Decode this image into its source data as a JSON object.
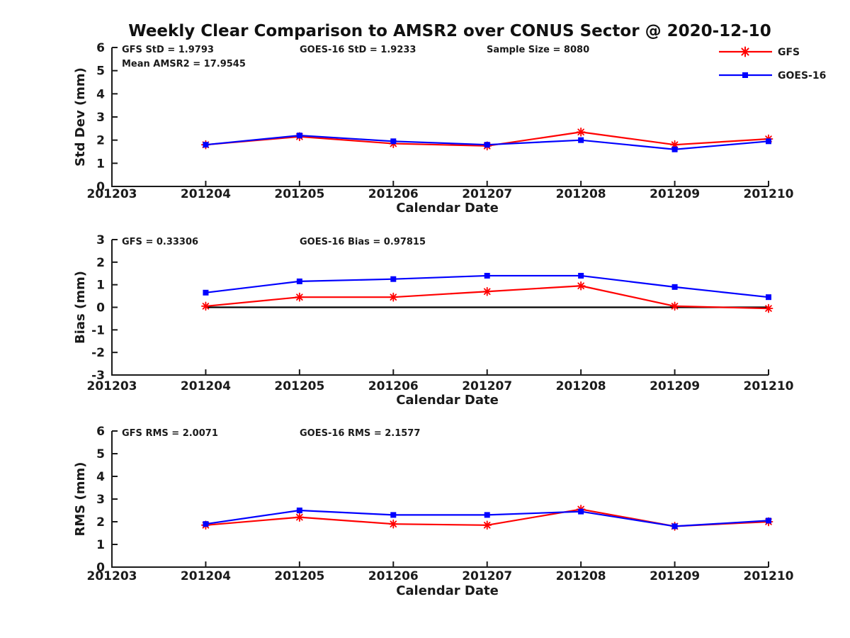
{
  "title": "Weekly Clear Comparison to AMSR2 over CONUS Sector @ 2020-12-10",
  "colors": {
    "gfs_red": "#ff0000",
    "goes_blue": "#0000ff",
    "axis_and_text": "#1a1a1a",
    "zero_line": "#000000",
    "background": "#ffffff"
  },
  "legend": {
    "position": "top-right",
    "items": [
      {
        "label": "GFS",
        "color": "#ff0000",
        "marker": "asterisk"
      },
      {
        "label": "GOES-16",
        "color": "#0000ff",
        "marker": "square"
      }
    ]
  },
  "chart_data": [
    {
      "id": "std_dev",
      "type": "line",
      "ylabel": "Std Dev (mm)",
      "xlabel": "Calendar Date",
      "ylim": [
        0,
        6
      ],
      "yticks": [
        0,
        1,
        2,
        3,
        4,
        5,
        6
      ],
      "x_ticks": [
        "201203",
        "201204",
        "201205",
        "201206",
        "201207",
        "201208",
        "201209",
        "201210"
      ],
      "categories": [
        "201204",
        "201205",
        "201206",
        "201207",
        "201208",
        "201209",
        "201210"
      ],
      "grid": false,
      "zero_line": false,
      "annotations": [
        {
          "text": "GFS StD = 1.9793",
          "col": 0,
          "row": 0
        },
        {
          "text": "Mean AMSR2 = 17.9545",
          "col": 0,
          "row": 1
        },
        {
          "text": "GOES-16 StD = 1.9233",
          "col": 1,
          "row": 0
        },
        {
          "text": "Sample Size = 8080",
          "col": 2,
          "row": 0
        }
      ],
      "series": [
        {
          "name": "GFS",
          "color": "#ff0000",
          "marker": "asterisk",
          "values": [
            1.8,
            2.15,
            1.85,
            1.75,
            2.35,
            1.8,
            2.05
          ]
        },
        {
          "name": "GOES-16",
          "color": "#0000ff",
          "marker": "square",
          "values": [
            1.8,
            2.2,
            1.95,
            1.8,
            2.0,
            1.6,
            1.95
          ]
        }
      ]
    },
    {
      "id": "bias",
      "type": "line",
      "ylabel": "Bias (mm)",
      "xlabel": "Calendar Date",
      "ylim": [
        -3,
        3
      ],
      "yticks": [
        -3,
        -2,
        -1,
        0,
        1,
        2,
        3
      ],
      "x_ticks": [
        "201203",
        "201204",
        "201205",
        "201206",
        "201207",
        "201208",
        "201209",
        "201210"
      ],
      "categories": [
        "201204",
        "201205",
        "201206",
        "201207",
        "201208",
        "201209",
        "201210"
      ],
      "grid": false,
      "zero_line": true,
      "annotations": [
        {
          "text": "GFS = 0.33306",
          "col": 0,
          "row": 0
        },
        {
          "text": "GOES-16 Bias  = 0.97815",
          "col": 1,
          "row": 0
        }
      ],
      "series": [
        {
          "name": "GFS",
          "color": "#ff0000",
          "marker": "asterisk",
          "values": [
            0.05,
            0.45,
            0.45,
            0.7,
            0.95,
            0.05,
            -0.05
          ]
        },
        {
          "name": "GOES-16",
          "color": "#0000ff",
          "marker": "square",
          "values": [
            0.65,
            1.15,
            1.25,
            1.4,
            1.4,
            0.9,
            0.45
          ]
        }
      ]
    },
    {
      "id": "rms",
      "type": "line",
      "ylabel": "RMS (mm)",
      "xlabel": "Calendar Date",
      "ylim": [
        0,
        6
      ],
      "yticks": [
        0,
        1,
        2,
        3,
        4,
        5,
        6
      ],
      "x_ticks": [
        "201203",
        "201204",
        "201205",
        "201206",
        "201207",
        "201208",
        "201209",
        "201210"
      ],
      "categories": [
        "201204",
        "201205",
        "201206",
        "201207",
        "201208",
        "201209",
        "201210"
      ],
      "grid": false,
      "zero_line": false,
      "annotations": [
        {
          "text": "GFS RMS = 2.0071",
          "col": 0,
          "row": 0
        },
        {
          "text": "GOES-16 RMS = 2.1577",
          "col": 1,
          "row": 0
        }
      ],
      "series": [
        {
          "name": "GFS",
          "color": "#ff0000",
          "marker": "asterisk",
          "values": [
            1.85,
            2.2,
            1.9,
            1.85,
            2.55,
            1.8,
            2.0
          ]
        },
        {
          "name": "GOES-16",
          "color": "#0000ff",
          "marker": "square",
          "values": [
            1.9,
            2.5,
            2.3,
            2.3,
            2.45,
            1.8,
            2.05
          ]
        }
      ]
    }
  ]
}
